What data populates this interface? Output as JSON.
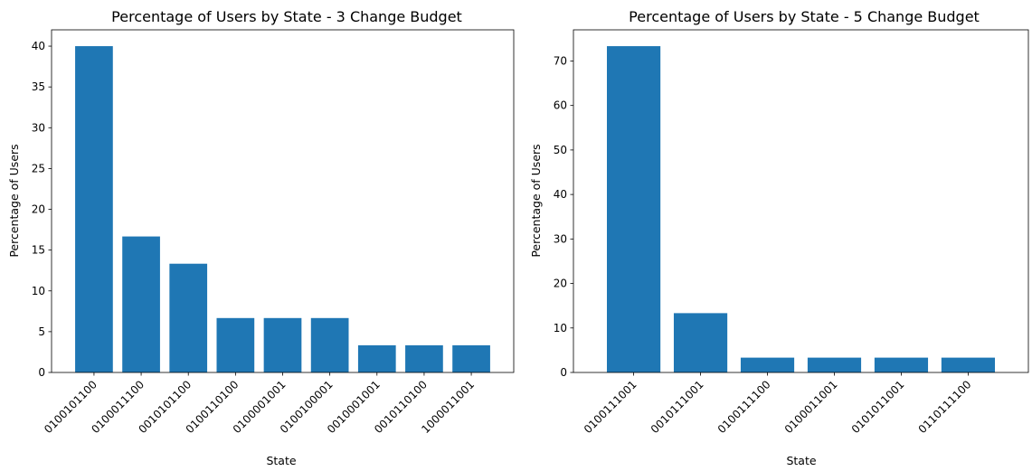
{
  "chart_data": [
    {
      "type": "bar",
      "title": "Percentage of Users by State - 3 Change Budget",
      "xlabel": "State",
      "ylabel": "Percentage of Users",
      "categories": [
        "0100101100",
        "0100011100",
        "0010101100",
        "0100110100",
        "0100001001",
        "0100100001",
        "0010001001",
        "0010110100",
        "1000011001"
      ],
      "values": [
        40.0,
        16.67,
        13.33,
        6.67,
        6.67,
        6.67,
        3.33,
        3.33,
        3.33
      ],
      "ylim": [
        0,
        42
      ],
      "yticks": [
        0,
        5,
        10,
        15,
        20,
        25,
        30,
        35,
        40
      ],
      "color": "#1f77b4",
      "grid": false
    },
    {
      "type": "bar",
      "title": "Percentage of Users by State - 5 Change Budget",
      "xlabel": "State",
      "ylabel": "Percentage of Users",
      "categories": [
        "0100111001",
        "0010111001",
        "0100111100",
        "0100011001",
        "0101011001",
        "0110111100"
      ],
      "values": [
        73.33,
        13.33,
        3.33,
        3.33,
        3.33,
        3.33
      ],
      "ylim": [
        0,
        77
      ],
      "yticks": [
        0,
        10,
        20,
        30,
        40,
        50,
        60,
        70
      ],
      "color": "#1f77b4",
      "grid": false
    }
  ]
}
